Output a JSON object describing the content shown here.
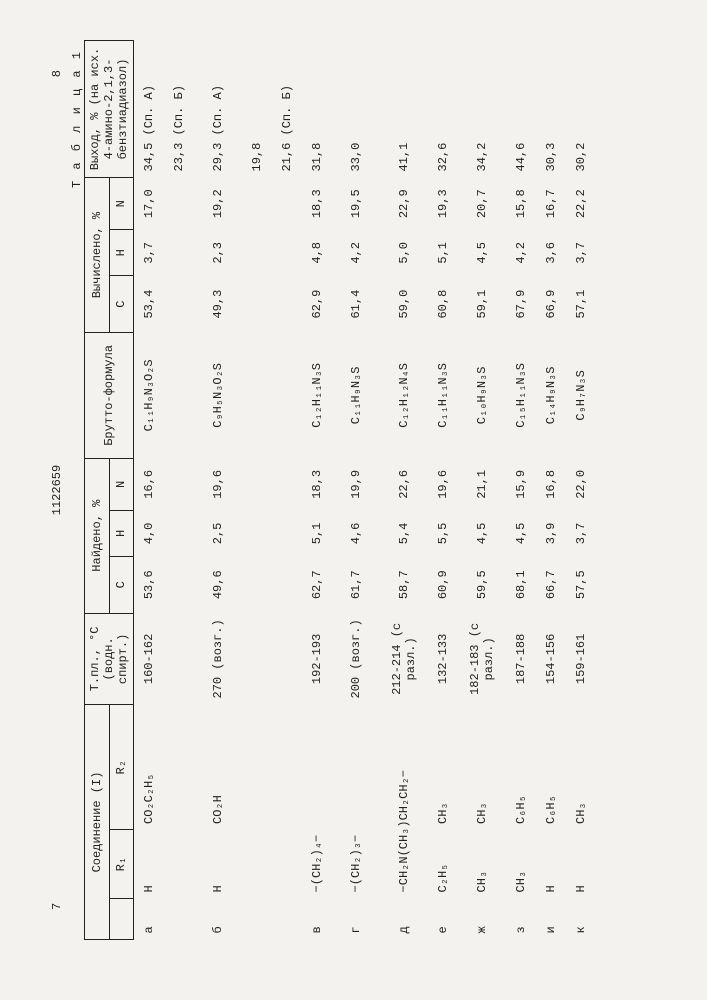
{
  "page_left": "7",
  "doc_number": "1122659",
  "page_right": "8",
  "table_label": "Т а б л и ц а  1",
  "head": {
    "compound": "Соединение (I)",
    "r1": "R₁",
    "r2": "R₂",
    "tmp": "Т.пл., °С (водн. спирт.)",
    "found": "Найдено, %",
    "C": "C",
    "H": "H",
    "N": "N",
    "brutto": "Брутто-формула",
    "calc": "Вычислено, %",
    "yield": "Выход, % (на исх. 4-амино-2,1,3-бензтиадиазол)"
  },
  "rows": [
    {
      "id": "а",
      "r1": "H",
      "r2": "CO₂C₂H₅",
      "mp": "160-162",
      "fC": "53,6",
      "fH": "4,0",
      "fN": "16,6",
      "bf": "C₁₁H₉N₃O₂S",
      "cC": "53,4",
      "cH": "3,7",
      "cN": "17,0",
      "y": "34,5 (Сп. А)"
    },
    {
      "id": "",
      "r1": "",
      "r2": "",
      "mp": "",
      "fC": "",
      "fH": "",
      "fN": "",
      "bf": "",
      "cC": "",
      "cH": "",
      "cN": "",
      "y": "23,3 (Сп. Б)"
    },
    {
      "id": "б",
      "r1": "H",
      "r2": "CO₂H",
      "mp": "270 (возг.)",
      "fC": "49,6",
      "fH": "2,5",
      "fN": "19,6",
      "bf": "C₉H₅N₃O₂S",
      "cC": "49,3",
      "cH": "2,3",
      "cN": "19,2",
      "y": "29,3 (Сп. А)"
    },
    {
      "id": "",
      "r1": "",
      "r2": "",
      "mp": "",
      "fC": "",
      "fH": "",
      "fN": "",
      "bf": "",
      "cC": "",
      "cH": "",
      "cN": "",
      "y": "19,8"
    },
    {
      "id": "",
      "r1": "",
      "r2": "",
      "mp": "",
      "fC": "",
      "fH": "",
      "fN": "",
      "bf": "",
      "cC": "",
      "cH": "",
      "cN": "",
      "y": "21,6 (Сп. Б)"
    },
    {
      "id": "в",
      "r1": "−(CH₂)₄−",
      "r2": "",
      "mp": "192-193",
      "fC": "62,7",
      "fH": "5,1",
      "fN": "18,3",
      "bf": "C₁₂H₁₁N₃S",
      "cC": "62,9",
      "cH": "4,8",
      "cN": "18,3",
      "y": "31,8",
      "span": true
    },
    {
      "id": "г",
      "r1": "−(CH₂)₃−",
      "r2": "",
      "mp": "200 (возг.)",
      "fC": "61,7",
      "fH": "4,6",
      "fN": "19,9",
      "bf": "C₁₁H₉N₃S",
      "cC": "61,4",
      "cH": "4,2",
      "cN": "19,5",
      "y": "33,0",
      "span": true
    },
    {
      "id": "д",
      "r1": "−CH₂N(CH₃)CH₂CH₂−",
      "r2": "",
      "mp": "212-214 (с разл.)",
      "fC": "58,7",
      "fH": "5,4",
      "fN": "22,6",
      "bf": "C₁₂H₁₂N₄S",
      "cC": "59,0",
      "cH": "5,0",
      "cN": "22,9",
      "y": "41,1",
      "span": true
    },
    {
      "id": "е",
      "r1": "C₂H₅",
      "r2": "CH₃",
      "mp": "132-133",
      "fC": "60,9",
      "fH": "5,5",
      "fN": "19,6",
      "bf": "C₁₁H₁₁N₃S",
      "cC": "60,8",
      "cH": "5,1",
      "cN": "19,3",
      "y": "32,6"
    },
    {
      "id": "ж",
      "r1": "CH₃",
      "r2": "CH₃",
      "mp": "182-183 (с разл.)",
      "fC": "59,5",
      "fH": "4,5",
      "fN": "21,1",
      "bf": "C₁₀H₉N₃S",
      "cC": "59,1",
      "cH": "4,5",
      "cN": "20,7",
      "y": "34,2"
    },
    {
      "id": "з",
      "r1": "CH₃",
      "r2": "C₆H₅",
      "mp": "187-188",
      "fC": "68,1",
      "fH": "4,5",
      "fN": "15,9",
      "bf": "C₁₅H₁₁N₃S",
      "cC": "67,9",
      "cH": "4,2",
      "cN": "15,8",
      "y": "44,6"
    },
    {
      "id": "и",
      "r1": "H",
      "r2": "C₆H₅",
      "mp": "154-156",
      "fC": "66,7",
      "fH": "3,9",
      "fN": "16,8",
      "bf": "C₁₄H₉N₃S",
      "cC": "66,9",
      "cH": "3,6",
      "cN": "16,7",
      "y": "30,3"
    },
    {
      "id": "к",
      "r1": "H",
      "r2": "CH₃",
      "mp": "159-161",
      "fC": "57,5",
      "fH": "3,7",
      "fN": "22,0",
      "bf": "C₉H₇N₃S",
      "cC": "57,1",
      "cH": "3,7",
      "cN": "22,2",
      "y": "30,2"
    }
  ]
}
